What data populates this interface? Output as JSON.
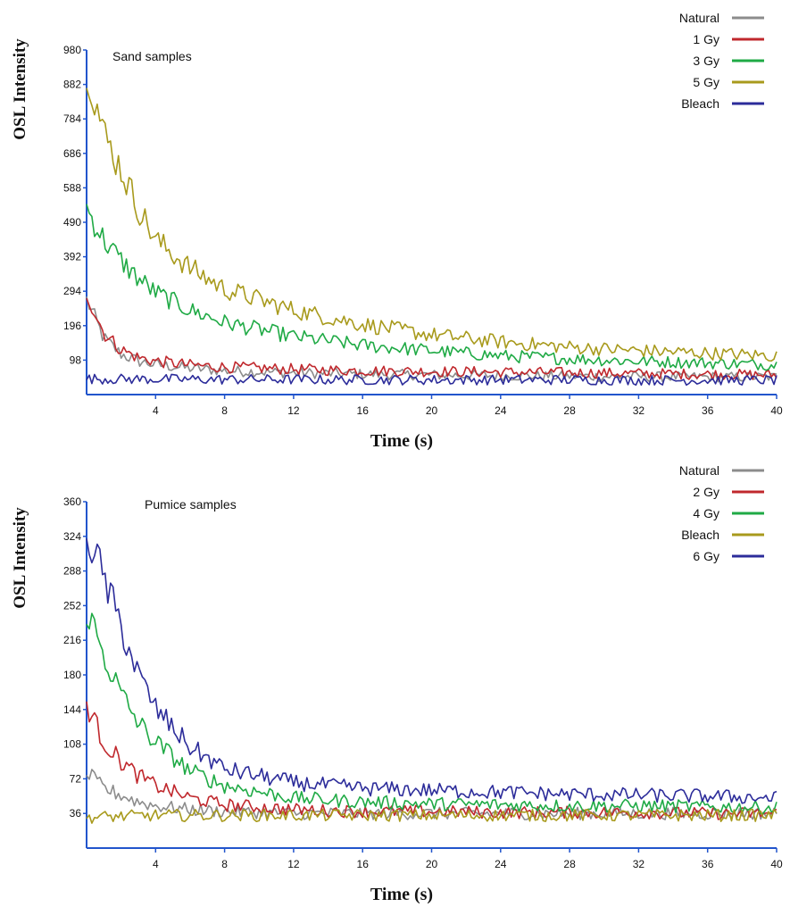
{
  "chart_data": [
    {
      "type": "line",
      "title": "Sand samples",
      "xlabel": "Time (s)",
      "ylabel": "OSL Intensity",
      "xlim": [
        0,
        40
      ],
      "ylim": [
        0,
        980
      ],
      "xticks": [
        4,
        8,
        12,
        16,
        20,
        24,
        28,
        32,
        36,
        40
      ],
      "yticks": [
        98,
        196,
        294,
        392,
        490,
        588,
        686,
        784,
        882,
        980
      ],
      "grid": false,
      "legend_position": "top-right",
      "series": [
        {
          "name": "Natural",
          "color": "#8c8c8c",
          "x": [
            0,
            1,
            2,
            3,
            4,
            6,
            8,
            12,
            16,
            20,
            24,
            28,
            32,
            36,
            40
          ],
          "y": [
            270,
            160,
            115,
            95,
            85,
            75,
            68,
            62,
            58,
            56,
            54,
            52,
            51,
            50,
            50
          ]
        },
        {
          "name": "1 Gy",
          "color": "#c0282d",
          "x": [
            0,
            1,
            2,
            3,
            4,
            6,
            8,
            12,
            16,
            20,
            24,
            28,
            32,
            36,
            40
          ],
          "y": [
            290,
            175,
            128,
            105,
            95,
            84,
            78,
            72,
            68,
            66,
            64,
            62,
            60,
            58,
            56
          ]
        },
        {
          "name": "3 Gy",
          "color": "#1faa45",
          "x": [
            0,
            1,
            2,
            3,
            4,
            6,
            8,
            12,
            16,
            20,
            24,
            28,
            32,
            36,
            40
          ],
          "y": [
            530,
            440,
            380,
            330,
            290,
            240,
            205,
            165,
            140,
            125,
            110,
            102,
            95,
            90,
            85
          ]
        },
        {
          "name": "5 Gy",
          "color": "#a89a1c",
          "x": [
            0,
            1,
            2,
            3,
            4,
            6,
            8,
            12,
            16,
            20,
            24,
            28,
            32,
            36,
            40
          ],
          "y": [
            940,
            740,
            640,
            530,
            440,
            360,
            300,
            240,
            200,
            170,
            150,
            135,
            125,
            118,
            110
          ]
        },
        {
          "name": "Bleach",
          "color": "#2c2c9a",
          "x": [
            0,
            2,
            4,
            8,
            12,
            16,
            20,
            24,
            28,
            32,
            36,
            40
          ],
          "y": [
            45,
            44,
            44,
            43,
            43,
            42,
            42,
            42,
            42,
            41,
            41,
            41
          ]
        }
      ]
    },
    {
      "type": "line",
      "title": "Pumice samples",
      "xlabel": "Time (s)",
      "ylabel": "OSL Intensity",
      "xlim": [
        0,
        40
      ],
      "ylim": [
        0,
        360
      ],
      "xticks": [
        4,
        8,
        12,
        16,
        20,
        24,
        28,
        32,
        36,
        40
      ],
      "yticks": [
        36,
        72,
        108,
        144,
        180,
        216,
        252,
        288,
        324,
        360
      ],
      "grid": false,
      "legend_position": "top-right",
      "series": [
        {
          "name": "Natural",
          "color": "#8c8c8c",
          "x": [
            0,
            1,
            2,
            3,
            4,
            6,
            8,
            12,
            16,
            20,
            24,
            28,
            32,
            36,
            40
          ],
          "y": [
            78,
            62,
            55,
            48,
            44,
            40,
            38,
            36,
            36,
            36,
            36,
            36,
            36,
            36,
            36
          ]
        },
        {
          "name": "2 Gy",
          "color": "#c0282d",
          "x": [
            0,
            1,
            2,
            3,
            4,
            6,
            8,
            12,
            16,
            20,
            24,
            28,
            32,
            36,
            40
          ],
          "y": [
            150,
            110,
            90,
            75,
            65,
            52,
            45,
            40,
            38,
            38,
            37,
            37,
            37,
            36,
            36
          ]
        },
        {
          "name": "4 Gy",
          "color": "#1faa45",
          "x": [
            0,
            1,
            2,
            3,
            4,
            6,
            8,
            12,
            16,
            20,
            24,
            28,
            32,
            36,
            40
          ],
          "y": [
            250,
            200,
            160,
            130,
            110,
            80,
            65,
            52,
            48,
            46,
            45,
            44,
            44,
            43,
            42
          ]
        },
        {
          "name": "Bleach",
          "color": "#a89a1c",
          "x": [
            0,
            2,
            4,
            8,
            12,
            16,
            20,
            24,
            28,
            32,
            36,
            40
          ],
          "y": [
            32,
            33,
            34,
            34,
            34,
            34,
            34,
            34,
            34,
            34,
            34,
            34
          ]
        },
        {
          "name": "6 Gy",
          "color": "#2c2c9a",
          "x": [
            0,
            1,
            2,
            3,
            4,
            6,
            8,
            12,
            16,
            20,
            24,
            28,
            32,
            36,
            40
          ],
          "y": [
            330,
            280,
            230,
            180,
            145,
            105,
            82,
            68,
            62,
            60,
            58,
            56,
            55,
            54,
            52
          ]
        }
      ]
    }
  ]
}
